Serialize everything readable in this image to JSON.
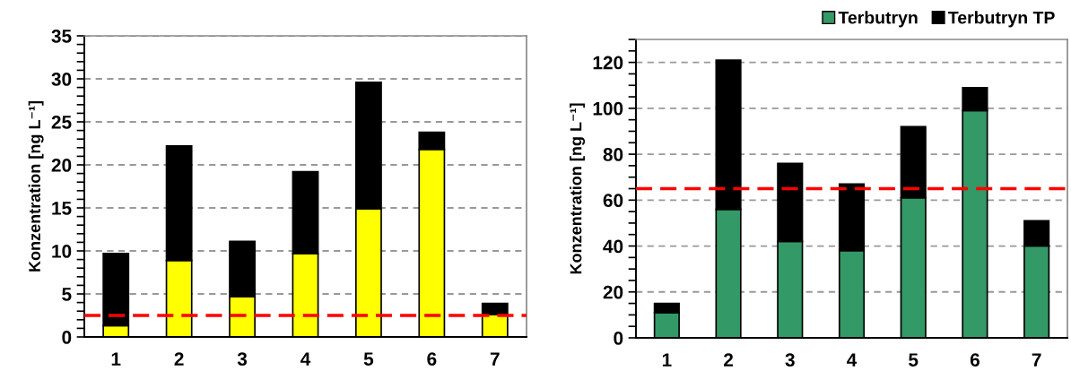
{
  "chart_data": [
    {
      "type": "bar",
      "categories": [
        "1",
        "2",
        "3",
        "4",
        "5",
        "6",
        "7"
      ],
      "stacked": true,
      "series": [
        {
          "color": "#ffff00",
          "values": [
            1.3,
            8.9,
            4.7,
            9.7,
            14.9,
            21.8,
            2.6
          ]
        },
        {
          "color": "#000000",
          "values": [
            8.4,
            13.3,
            6.4,
            9.5,
            14.7,
            2.0,
            1.3
          ]
        }
      ],
      "ylabel": "Konzentration [ng L⁻¹]",
      "ylim": [
        0,
        35
      ],
      "yticks": [
        0,
        {
          "value": 1,
          "label": null
        },
        {
          "value": 2,
          "label": null
        },
        {
          "value": 3,
          "label": null
        },
        {
          "value": 4,
          "label": null
        },
        5,
        {
          "value": 6,
          "label": null
        },
        {
          "value": 7,
          "label": null
        },
        {
          "value": 8,
          "label": null
        },
        {
          "value": 9,
          "label": null
        },
        10,
        {
          "value": 11,
          "label": null
        },
        {
          "value": 12,
          "label": null
        },
        {
          "value": 13,
          "label": null
        },
        {
          "value": 14,
          "label": null
        },
        15,
        {
          "value": 16,
          "label": null
        },
        {
          "value": 17,
          "label": null
        },
        {
          "value": 18,
          "label": null
        },
        {
          "value": 19,
          "label": null
        },
        20,
        {
          "value": 21,
          "label": null
        },
        {
          "value": 22,
          "label": null
        },
        {
          "value": 23,
          "label": null
        },
        {
          "value": 24,
          "label": null
        },
        25,
        {
          "value": 26,
          "label": null
        },
        {
          "value": 27,
          "label": null
        },
        {
          "value": 28,
          "label": null
        },
        {
          "value": 29,
          "label": null
        },
        30,
        {
          "value": 31,
          "label": null
        },
        {
          "value": 32,
          "label": null
        },
        {
          "value": 33,
          "label": null
        },
        {
          "value": 34,
          "label": null
        },
        35
      ],
      "grid": "y",
      "ref_lines": [
        {
          "axis": "y",
          "value": 2.5,
          "color": "#ff0000",
          "line_style": "dashed"
        }
      ]
    },
    {
      "type": "bar",
      "categories": [
        "1",
        "2",
        "3",
        "4",
        "5",
        "6",
        "7"
      ],
      "stacked": true,
      "series": [
        {
          "name": "Terbutryn",
          "color": "#339966",
          "values": [
            11,
            56,
            42,
            38,
            61,
            99,
            40
          ]
        },
        {
          "name": "Terbutryn TP",
          "color": "#000000",
          "values": [
            4,
            65,
            34,
            29,
            31,
            10,
            11
          ]
        }
      ],
      "ylabel": "Konzentration [ng L⁻¹]",
      "ylim": [
        0,
        130
      ],
      "yticks": [
        0,
        {
          "value": 5,
          "label": null
        },
        {
          "value": 10,
          "label": null
        },
        {
          "value": 15,
          "label": null
        },
        20,
        {
          "value": 25,
          "label": null
        },
        {
          "value": 30,
          "label": null
        },
        {
          "value": 35,
          "label": null
        },
        40,
        {
          "value": 45,
          "label": null
        },
        {
          "value": 50,
          "label": null
        },
        {
          "value": 55,
          "label": null
        },
        60,
        {
          "value": 65,
          "label": null
        },
        {
          "value": 70,
          "label": null
        },
        {
          "value": 75,
          "label": null
        },
        80,
        {
          "value": 85,
          "label": null
        },
        {
          "value": 90,
          "label": null
        },
        {
          "value": 95,
          "label": null
        },
        100,
        {
          "value": 105,
          "label": null
        },
        {
          "value": 110,
          "label": null
        },
        {
          "value": 115,
          "label": null
        },
        120,
        {
          "value": 125,
          "label": null
        },
        {
          "value": 130,
          "label": null
        }
      ],
      "grid": "y",
      "legend": "top right",
      "ref_lines": [
        {
          "axis": "y",
          "value": 65,
          "color": "#ff0000",
          "line_style": "dashed"
        }
      ]
    }
  ]
}
